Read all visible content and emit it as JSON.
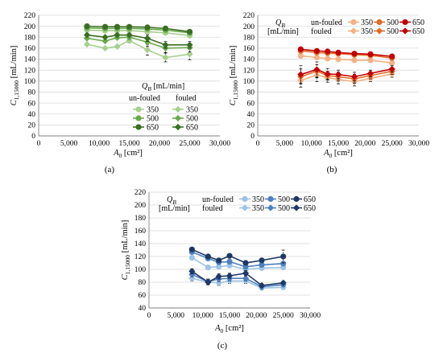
{
  "chart_data": [
    {
      "type": "line",
      "caption": "(a)",
      "xlabel": "A0 [cm²]",
      "ylabel": "C1,15000 [mL/min]",
      "xlim": [
        0,
        30000
      ],
      "ylim": [
        0,
        220
      ],
      "xticks": [
        "0",
        "5,000",
        "10,000",
        "15,000",
        "20,000",
        "25,000",
        "30,000"
      ],
      "yticks": [
        "0",
        "20",
        "40",
        "60",
        "80",
        "100",
        "120",
        "140",
        "160",
        "180",
        "200",
        "220"
      ],
      "legend": {
        "placement": "bottom-right",
        "title": "QB [mL/min]",
        "group_labels": [
          "un-fouled",
          "fouled"
        ]
      },
      "series": [
        {
          "name": "350",
          "group": "un-fouled",
          "color": "#a6cf90",
          "marker": "circle",
          "x": [
            8000,
            11000,
            13000,
            15000,
            18000,
            21000,
            25000
          ],
          "y": [
            193,
            192,
            192,
            192,
            190,
            188,
            183
          ],
          "err": [
            0,
            0,
            0,
            0,
            0,
            0,
            0
          ]
        },
        {
          "name": "500",
          "group": "un-fouled",
          "color": "#6aaa4c",
          "marker": "circle",
          "x": [
            8000,
            11000,
            13000,
            15000,
            18000,
            21000,
            25000
          ],
          "y": [
            197,
            196,
            196,
            196,
            195,
            193,
            188
          ],
          "err": [
            0,
            0,
            0,
            0,
            0,
            0,
            0
          ]
        },
        {
          "name": "650",
          "group": "un-fouled",
          "color": "#3a6e22",
          "marker": "circle",
          "x": [
            8000,
            11000,
            13000,
            15000,
            18000,
            21000,
            25000
          ],
          "y": [
            200,
            199,
            199,
            199,
            198,
            196,
            190
          ],
          "err": [
            0,
            0,
            0,
            0,
            0,
            0,
            0
          ]
        },
        {
          "name": "350",
          "group": "fouled",
          "color": "#a6cf90",
          "marker": "diamond",
          "x": [
            8000,
            11000,
            13000,
            15000,
            18000,
            21000,
            25000
          ],
          "y": [
            167,
            160,
            163,
            174,
            157,
            143,
            149
          ],
          "err": [
            0,
            0,
            0,
            4,
            10,
            8,
            10
          ]
        },
        {
          "name": "500",
          "group": "fouled",
          "color": "#6aaa4c",
          "marker": "diamond",
          "x": [
            8000,
            11000,
            13000,
            15000,
            18000,
            21000,
            25000
          ],
          "y": [
            178,
            173,
            179,
            180,
            171,
            160,
            161
          ],
          "err": [
            0,
            0,
            0,
            4,
            8,
            8,
            8
          ]
        },
        {
          "name": "650",
          "group": "fouled",
          "color": "#3a6e22",
          "marker": "diamond",
          "x": [
            8000,
            11000,
            13000,
            15000,
            18000,
            21000,
            25000
          ],
          "y": [
            184,
            180,
            184,
            184,
            178,
            166,
            166
          ],
          "err": [
            0,
            0,
            0,
            3,
            6,
            6,
            6
          ]
        }
      ]
    },
    {
      "type": "line",
      "caption": "(b)",
      "xlabel": "A0 [cm²]",
      "ylabel": "C1,15000 [mL/min]",
      "xlim": [
        0,
        30000
      ],
      "ylim": [
        0,
        220
      ],
      "xticks": [
        "0",
        "5,000",
        "10,000",
        "15,000",
        "20,000",
        "25,000",
        "30,000"
      ],
      "yticks": [
        "0",
        "20",
        "40",
        "60",
        "80",
        "100",
        "120",
        "140",
        "160",
        "180",
        "200",
        "220"
      ],
      "legend": {
        "placement": "top",
        "title": "QB",
        "unit": "[mL/min]",
        "group_labels": [
          "un-fouled",
          "fouled"
        ]
      },
      "series": [
        {
          "name": "350",
          "group": "un-fouled",
          "color": "#f4b183",
          "marker": "circle",
          "x": [
            8000,
            11000,
            13000,
            15000,
            18000,
            21000,
            25000
          ],
          "y": [
            146,
            143,
            141,
            140,
            138,
            138,
            133
          ],
          "err": [
            0,
            0,
            0,
            0,
            0,
            0,
            0
          ]
        },
        {
          "name": "500",
          "group": "un-fouled",
          "color": "#e26b2a",
          "marker": "circle",
          "x": [
            8000,
            11000,
            13000,
            15000,
            18000,
            21000,
            25000
          ],
          "y": [
            155,
            152,
            151,
            150,
            148,
            147,
            142
          ],
          "err": [
            0,
            0,
            0,
            0,
            0,
            0,
            0
          ]
        },
        {
          "name": "650",
          "group": "un-fouled",
          "color": "#c00000",
          "marker": "circle",
          "x": [
            8000,
            11000,
            13000,
            15000,
            18000,
            21000,
            25000
          ],
          "y": [
            158,
            155,
            154,
            152,
            150,
            149,
            145
          ],
          "err": [
            0,
            0,
            0,
            0,
            0,
            0,
            0
          ]
        },
        {
          "name": "350",
          "group": "fouled",
          "color": "#f4b183",
          "marker": "diamond",
          "x": [
            8000,
            11000,
            13000,
            15000,
            18000,
            21000,
            25000
          ],
          "y": [
            101,
            111,
            106,
            103,
            99,
            105,
            113
          ],
          "err": [
            12,
            12,
            8,
            8,
            8,
            6,
            6
          ]
        },
        {
          "name": "500",
          "group": "fouled",
          "color": "#e26b2a",
          "marker": "diamond",
          "x": [
            8000,
            11000,
            13000,
            15000,
            18000,
            21000,
            25000
          ],
          "y": [
            108,
            118,
            110,
            108,
            104,
            110,
            118
          ],
          "err": [
            14,
            12,
            8,
            8,
            8,
            6,
            6
          ]
        },
        {
          "name": "650",
          "group": "fouled",
          "color": "#c00000",
          "marker": "diamond",
          "x": [
            8000,
            11000,
            13000,
            15000,
            18000,
            21000,
            25000
          ],
          "y": [
            112,
            121,
            113,
            112,
            108,
            114,
            122
          ],
          "err": [
            16,
            14,
            10,
            8,
            8,
            6,
            6
          ]
        }
      ]
    },
    {
      "type": "line",
      "caption": "(c)",
      "xlabel": "A0 [cm²]",
      "ylabel": "C1,15000 [mL/min]",
      "xlim": [
        0,
        30000
      ],
      "ylim": [
        40,
        220
      ],
      "xticks": [
        "0",
        "5,000",
        "10,000",
        "15,000",
        "20,000",
        "25,000",
        "30,000"
      ],
      "yticks": [
        "40",
        "60",
        "80",
        "100",
        "120",
        "140",
        "160",
        "180",
        "200",
        "220"
      ],
      "legend": {
        "placement": "top",
        "title": "QB",
        "unit": "[mL/min]",
        "group_labels": [
          "un-fouled",
          "fouled"
        ]
      },
      "series": [
        {
          "name": "350",
          "group": "un-fouled",
          "color": "#9dc3e6",
          "marker": "circle",
          "x": [
            8000,
            11000,
            13000,
            15000,
            18000,
            21000,
            25000
          ],
          "y": [
            118,
            103,
            104,
            106,
            100,
            102,
            103
          ],
          "err": [
            0,
            0,
            0,
            0,
            0,
            0,
            0
          ]
        },
        {
          "name": "500",
          "group": "un-fouled",
          "color": "#4f7fbf",
          "marker": "circle",
          "x": [
            8000,
            11000,
            13000,
            15000,
            18000,
            21000,
            25000
          ],
          "y": [
            127,
            117,
            111,
            112,
            104,
            107,
            109
          ],
          "err": [
            0,
            0,
            0,
            0,
            0,
            0,
            0
          ]
        },
        {
          "name": "650",
          "group": "un-fouled",
          "color": "#1f3864",
          "marker": "circle",
          "x": [
            8000,
            11000,
            13000,
            15000,
            18000,
            21000,
            25000
          ],
          "y": [
            131,
            120,
            114,
            121,
            110,
            114,
            120
          ],
          "err": [
            0,
            0,
            0,
            0,
            0,
            0,
            10
          ]
        },
        {
          "name": "350",
          "group": "fouled",
          "color": "#9dc3e6",
          "marker": "diamond",
          "x": [
            8000,
            11000,
            13000,
            15000,
            18000,
            21000,
            25000
          ],
          "y": [
            86,
            80,
            79,
            82,
            82,
            71,
            72
          ],
          "err": [
            4,
            4,
            4,
            4,
            4,
            3,
            3
          ]
        },
        {
          "name": "500",
          "group": "fouled",
          "color": "#4f7fbf",
          "marker": "diamond",
          "x": [
            8000,
            11000,
            13000,
            15000,
            18000,
            21000,
            25000
          ],
          "y": [
            92,
            81,
            85,
            86,
            86,
            73,
            76
          ],
          "err": [
            4,
            4,
            4,
            4,
            4,
            3,
            3
          ]
        },
        {
          "name": "650",
          "group": "fouled",
          "color": "#1f3864",
          "marker": "diamond",
          "x": [
            8000,
            11000,
            13000,
            15000,
            18000,
            21000,
            25000
          ],
          "y": [
            97,
            80,
            89,
            90,
            94,
            75,
            79
          ],
          "err": [
            4,
            4,
            4,
            4,
            4,
            3,
            3
          ]
        }
      ]
    }
  ]
}
